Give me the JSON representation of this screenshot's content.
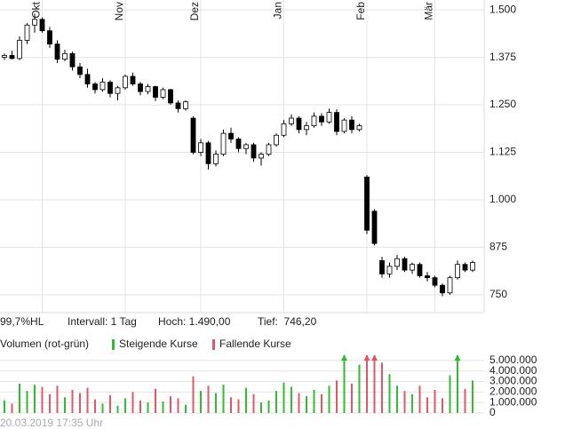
{
  "chart_data": {
    "type": "candlestick",
    "open": [
      1375,
      1380,
      1372,
      1420,
      1460,
      1475,
      1445,
      1410,
      1370,
      1385,
      1350,
      1330,
      1305,
      1290,
      1310,
      1280,
      1295,
      1325,
      1305,
      1285,
      1298,
      1270,
      1290,
      1255,
      1240,
      1215,
      1125,
      1150,
      1095,
      1120,
      1175,
      1160,
      1135,
      1145,
      1110,
      1120,
      1145,
      1170,
      1200,
      1215,
      1185,
      1195,
      1220,
      1205,
      1230,
      1180,
      1210,
      1185,
      1060,
      970,
      840,
      805,
      825,
      845,
      815,
      830,
      800,
      795,
      775,
      755,
      795,
      830,
      815
    ],
    "high": [
      1385,
      1392,
      1430,
      1465,
      1490,
      1480,
      1455,
      1420,
      1395,
      1390,
      1360,
      1345,
      1310,
      1320,
      1315,
      1300,
      1330,
      1335,
      1310,
      1305,
      1300,
      1295,
      1292,
      1262,
      1262,
      1220,
      1160,
      1155,
      1130,
      1185,
      1190,
      1165,
      1150,
      1150,
      1125,
      1150,
      1175,
      1210,
      1225,
      1220,
      1205,
      1230,
      1228,
      1240,
      1238,
      1215,
      1220,
      1200,
      1065,
      975,
      850,
      835,
      855,
      850,
      835,
      835,
      810,
      800,
      780,
      800,
      840,
      835,
      840
    ],
    "low": [
      1368,
      1370,
      1368,
      1410,
      1440,
      1440,
      1400,
      1360,
      1365,
      1340,
      1320,
      1295,
      1280,
      1285,
      1270,
      1262,
      1290,
      1300,
      1275,
      1278,
      1260,
      1265,
      1250,
      1230,
      1235,
      1120,
      1115,
      1080,
      1088,
      1115,
      1150,
      1125,
      1120,
      1100,
      1090,
      1115,
      1140,
      1165,
      1195,
      1175,
      1170,
      1190,
      1195,
      1200,
      1170,
      1175,
      1175,
      1180,
      910,
      880,
      795,
      795,
      815,
      810,
      805,
      795,
      785,
      770,
      746.2,
      750,
      790,
      810,
      810
    ],
    "close": [
      1380,
      1372,
      1420,
      1460,
      1475,
      1445,
      1410,
      1370,
      1385,
      1350,
      1330,
      1305,
      1290,
      1310,
      1280,
      1295,
      1325,
      1305,
      1285,
      1298,
      1270,
      1290,
      1255,
      1240,
      1258,
      1125,
      1150,
      1095,
      1120,
      1175,
      1160,
      1135,
      1145,
      1110,
      1120,
      1145,
      1170,
      1200,
      1215,
      1185,
      1195,
      1220,
      1205,
      1230,
      1180,
      1210,
      1185,
      1195,
      920,
      885,
      805,
      825,
      845,
      815,
      830,
      800,
      795,
      775,
      755,
      795,
      830,
      815,
      835
    ],
    "volume": [
      1200000,
      900000,
      2800000,
      2100000,
      2700000,
      2500000,
      1800000,
      2600000,
      1500000,
      2200000,
      1900000,
      2400000,
      1300000,
      900000,
      1700000,
      700000,
      1400000,
      2000000,
      1200000,
      1000000,
      2300000,
      1100000,
      1600000,
      1400000,
      800000,
      3500000,
      2100000,
      2600000,
      1900000,
      2700000,
      1500000,
      1300000,
      2400000,
      1800000,
      1000000,
      1200000,
      2100000,
      2900000,
      2500000,
      1900000,
      1600000,
      2200000,
      1800000,
      2600000,
      3100000,
      5800000,
      2800000,
      4600000,
      6000000,
      6200000,
      4800000,
      3700000,
      2600000,
      2100000,
      1800000,
      2600000,
      1500000,
      2200000,
      1400000,
      3600000,
      6500000,
      2300000,
      3100000
    ],
    "up_color": "#ffffff",
    "down_color": "#000000",
    "volume_up_color": "#33bb33",
    "volume_down_color": "#e05868",
    "ylim": [
      703,
      1526
    ],
    "yticks": [
      {
        "value": 1500,
        "label": "1.500"
      },
      {
        "value": 1375,
        "label": "1.375"
      },
      {
        "value": 1250,
        "label": "1.250"
      },
      {
        "value": 1125,
        "label": "1.125"
      },
      {
        "value": 1000,
        "label": "1.000"
      },
      875,
      750
    ],
    "month_ticks": [
      {
        "value": 5,
        "label": "Okt"
      },
      {
        "value": 16,
        "label": "Nov"
      },
      {
        "value": 26,
        "label": "Dez"
      },
      {
        "value": 37,
        "label": "Jan"
      },
      {
        "value": 48,
        "label": "Feb"
      },
      {
        "value": 57,
        "label": "Mär"
      }
    ],
    "volume_lim": [
      0,
      5500000
    ],
    "volume_ticks": [
      {
        "value": 5000000,
        "label": "5.000.000"
      },
      {
        "value": 4000000,
        "label": "4.000.000"
      },
      {
        "value": 3000000,
        "label": "3.000.000"
      },
      {
        "value": 2000000,
        "label": "2.000.000"
      },
      {
        "value": 1000000,
        "label": "1.000.000"
      },
      0
    ],
    "indicator": "99,7%HL",
    "interval": "Intervall: 1 Tag",
    "high_label": "Hoch: 1.490,00",
    "low_label": "Tief:  746,20",
    "volume_title": "Volumen (rot-grün)",
    "legend_up": "Steigende Kurse",
    "legend_down": "Fallende Kurse",
    "timestamp": "20.03.2019 17:35 Uhr"
  }
}
